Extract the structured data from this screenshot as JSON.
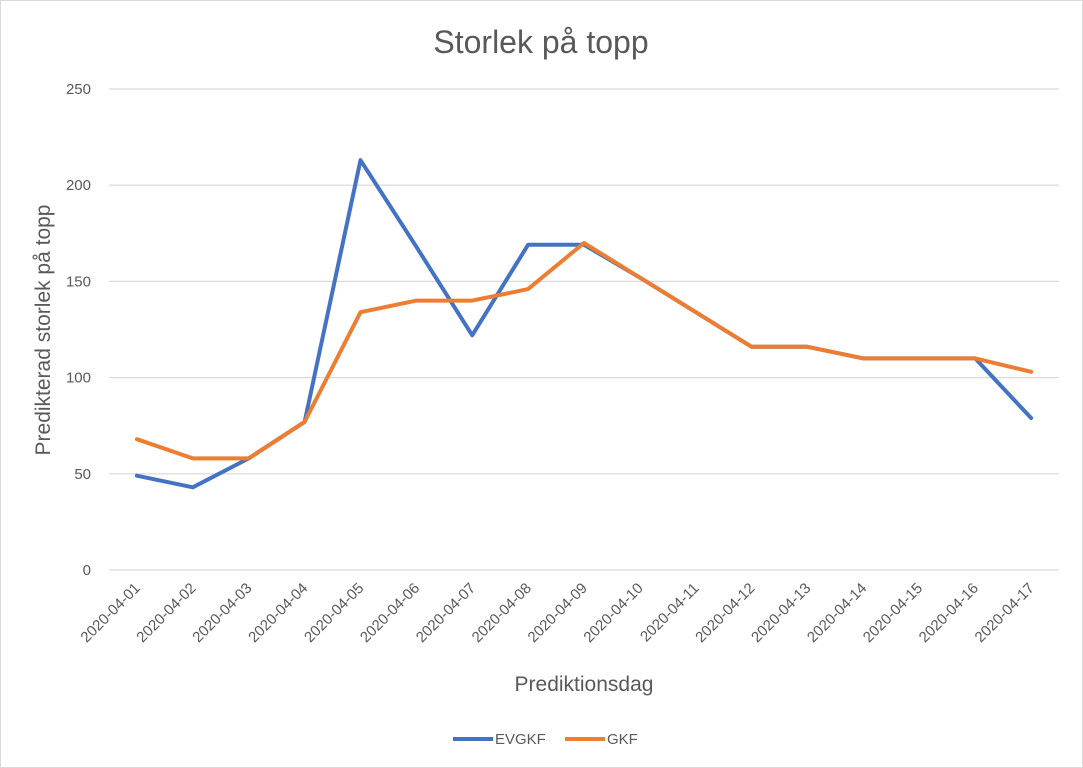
{
  "chart_data": {
    "type": "line",
    "title": "Storlek på topp",
    "xlabel": "Prediktionsdag",
    "ylabel": "Predikterad storlek på topp",
    "categories": [
      "2020-04-01",
      "2020-04-02",
      "2020-04-03",
      "2020-04-04",
      "2020-04-05",
      "2020-04-06",
      "2020-04-07",
      "2020-04-08",
      "2020-04-09",
      "2020-04-10",
      "2020-04-11",
      "2020-04-12",
      "2020-04-13",
      "2020-04-14",
      "2020-04-15",
      "2020-04-16",
      "2020-04-17"
    ],
    "ylim": [
      0,
      250
    ],
    "yticks": [
      0,
      50,
      100,
      150,
      200,
      250
    ],
    "grid": true,
    "legend_position": "bottom",
    "series": [
      {
        "name": "EVGKF",
        "color": "#4472C4",
        "values": [
          49,
          43,
          58,
          77,
          213,
          168,
          122,
          169,
          169,
          152,
          134,
          116,
          116,
          110,
          110,
          110,
          79
        ]
      },
      {
        "name": "GKF",
        "color": "#ED7D31",
        "values": [
          68,
          58,
          58,
          77,
          134,
          140,
          140,
          146,
          170,
          152,
          134,
          116,
          116,
          110,
          110,
          110,
          103
        ]
      }
    ]
  }
}
